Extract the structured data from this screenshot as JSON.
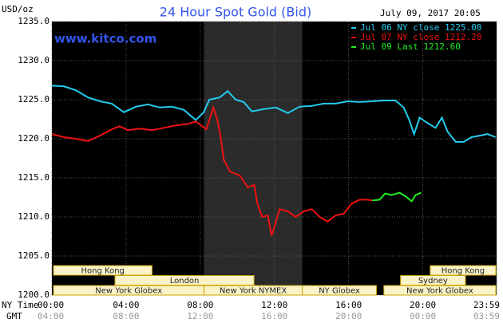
{
  "chart_data": {
    "type": "line",
    "title": "24 Hour Spot Gold (Bid)",
    "timestamp": "July 09, 2017 20:05",
    "y_label": "USD/oz",
    "watermark": "www.kitco.com",
    "x_label": "NY Time",
    "gmt_label": "GMT",
    "xlim": [
      0,
      23.98
    ],
    "xticks": [
      {
        "value": 0,
        "label": "00:00"
      },
      {
        "value": 4,
        "label": "04:00"
      },
      {
        "value": 8,
        "label": "08:00"
      },
      {
        "value": 12,
        "label": "12:00"
      },
      {
        "value": 16,
        "label": "16:00"
      },
      {
        "value": 20,
        "label": "20:00"
      },
      {
        "value": 23.98,
        "label": "23:59"
      }
    ],
    "gmt_ticks": [
      "04:00",
      "08:00",
      "12:00",
      "16:00",
      "20:00",
      "00:00",
      "03:59"
    ],
    "ylim": [
      1200,
      1235
    ],
    "yticks": [
      {
        "value": 1200,
        "label": "1200.0"
      },
      {
        "value": 1205,
        "label": "1205.0"
      },
      {
        "value": 1210,
        "label": "1210.0"
      },
      {
        "value": 1215,
        "label": "1215.0"
      },
      {
        "value": 1220,
        "label": "1220.0"
      },
      {
        "value": 1225,
        "label": "1225.0"
      },
      {
        "value": 1230,
        "label": "1230.0"
      },
      {
        "value": 1235,
        "label": "1235.0"
      }
    ],
    "grid": true,
    "legend": "top-right",
    "series": [
      {
        "name": "Jul 06 NY close 1225.00",
        "color": "#22ccee",
        "x": [
          0,
          0.65,
          1.29,
          1.94,
          2.59,
          3.23,
          3.88,
          4.53,
          5.17,
          5.82,
          6.47,
          7.11,
          7.76,
          8.19,
          8.49,
          9.05,
          9.48,
          9.91,
          10.34,
          10.78,
          11.42,
          12.07,
          12.72,
          13.36,
          14.01,
          14.66,
          15.3,
          15.95,
          16.59,
          17.24,
          17.89,
          18.53,
          18.97,
          19.27,
          19.53,
          19.83,
          20.26,
          20.69,
          21.03,
          21.34,
          21.77,
          22.2,
          22.63,
          23.06,
          23.49,
          23.92
        ],
        "values": [
          1226.8,
          1226.7,
          1226.2,
          1225.3,
          1224.8,
          1224.5,
          1223.4,
          1224.1,
          1224.4,
          1224.0,
          1224.1,
          1223.7,
          1222.4,
          1223.4,
          1225.0,
          1225.3,
          1226.1,
          1225.0,
          1224.7,
          1223.5,
          1223.8,
          1224.0,
          1223.3,
          1224.1,
          1224.2,
          1224.5,
          1224.5,
          1224.8,
          1224.7,
          1224.8,
          1224.9,
          1224.9,
          1224.0,
          1222.4,
          1220.6,
          1222.7,
          1222.0,
          1221.4,
          1222.7,
          1220.9,
          1219.6,
          1219.6,
          1220.2,
          1220.4,
          1220.6,
          1220.2
        ]
      },
      {
        "name": "Jul 07 NY close 1212.20",
        "color": "#ee1111",
        "x": [
          0,
          0.65,
          1.29,
          1.94,
          2.59,
          3.23,
          3.66,
          4.09,
          4.74,
          5.39,
          6.03,
          6.68,
          7.33,
          7.76,
          8.06,
          8.32,
          8.49,
          8.71,
          8.92,
          9.09,
          9.27,
          9.61,
          10.13,
          10.56,
          10.91,
          11.08,
          11.34,
          11.64,
          11.85,
          12.07,
          12.28,
          12.72,
          13.15,
          13.58,
          14.01,
          14.44,
          14.87,
          15.3,
          15.73,
          16.16,
          16.59,
          17.03,
          17.28
        ],
        "values": [
          1220.6,
          1220.2,
          1220.0,
          1219.7,
          1220.4,
          1221.2,
          1221.6,
          1221.1,
          1221.3,
          1221.1,
          1221.4,
          1221.7,
          1221.9,
          1222.2,
          1221.7,
          1221.2,
          1222.4,
          1224.0,
          1222.4,
          1220.4,
          1217.3,
          1215.8,
          1215.3,
          1213.8,
          1214.1,
          1211.7,
          1210.0,
          1210.2,
          1207.6,
          1209.3,
          1211.0,
          1210.7,
          1210.0,
          1210.7,
          1211.0,
          1210.0,
          1209.4,
          1210.2,
          1210.4,
          1211.7,
          1212.2,
          1212.2,
          1212.1
        ]
      },
      {
        "name": "Jul 09 Last 1212.60",
        "color": "#22ee22",
        "x": [
          17.28,
          17.67,
          17.97,
          18.32,
          18.75,
          19.09,
          19.4,
          19.61,
          19.91
        ],
        "values": [
          1212.1,
          1212.2,
          1213.0,
          1212.8,
          1213.1,
          1212.6,
          1212.0,
          1212.8,
          1213.1
        ]
      }
    ],
    "sessions": [
      {
        "label": "Hong Kong",
        "start": 0,
        "end": 5.4
      },
      {
        "label": "London",
        "start": 3.4,
        "end": 10.9
      },
      {
        "label": "New York Globex",
        "start": 0,
        "end": 8.2
      },
      {
        "label": "New York NYMEX",
        "start": 8.2,
        "end": 13.5
      },
      {
        "label": "NY Globex",
        "start": 13.5,
        "end": 17.5
      },
      {
        "label": "Hong Kong",
        "start": 20.4,
        "end": 23.98
      },
      {
        "label": "Sydney",
        "start": 18.8,
        "end": 22.3
      },
      {
        "label": "New York Globex",
        "start": 17.9,
        "end": 23.98
      }
    ]
  }
}
